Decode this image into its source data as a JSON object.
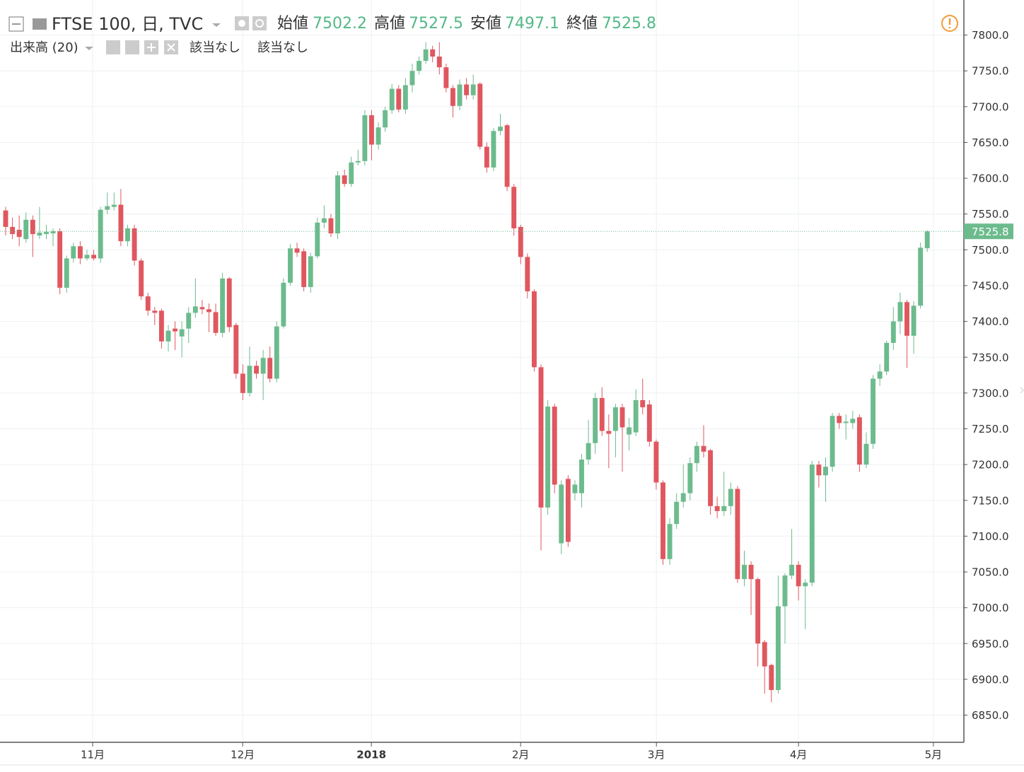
{
  "chart_data": {
    "type": "candlestick",
    "title": "FTSE 100, 日, TVC",
    "ohlc_labels": [
      "始値",
      "高値",
      "安値",
      "終値"
    ],
    "indicator": "出来高 (20)",
    "indicator_values": [
      "該当なし",
      "該当なし"
    ],
    "up_color": "#6cbb8d",
    "down_color": "#e0575f",
    "grid": true,
    "open": [
      7555,
      7532,
      7528,
      7515,
      7542,
      7520,
      7522,
      7523,
      7526,
      7447,
      7488,
      7505,
      7488,
      7493,
      7488,
      7556,
      7560,
      7563,
      7512,
      7530,
      7485,
      7435,
      7415,
      7415,
      7372,
      7390,
      7379,
      7390,
      7412,
      7420,
      7417,
      7413,
      7384,
      7460,
      7395,
      7327,
      7300,
      7338,
      7327,
      7349,
      7320,
      7393,
      7454,
      7502,
      7498,
      7448,
      7491,
      7538,
      7544,
      7523,
      7604,
      7592,
      7622,
      7624,
      7688,
      7647,
      7671,
      7695,
      7725,
      7696,
      7730,
      7750,
      7764,
      7780,
      7770,
      7755,
      7726,
      7701,
      7731,
      7716,
      7732,
      7644,
      7615,
      7666,
      7674,
      7588,
      7532,
      7490,
      7442,
      7336,
      7140,
      7281,
      7090,
      7180,
      7160,
      7160,
      7207,
      7230,
      7293,
      7247,
      7247,
      7280,
      7242,
      7245,
      7290,
      7284,
      7232,
      7175,
      7068,
      7117,
      7148,
      7160,
      7202,
      7226,
      7220,
      7142,
      7135,
      7142,
      7166,
      7040,
      7060,
      7040,
      6952,
      6920,
      6885,
      7002,
      7045,
      7060,
      7030,
      7035,
      7200,
      7185,
      7197,
      7268,
      7258,
      7258,
      7266,
      7200,
      7229,
      7320,
      7330,
      7370,
      7400,
      7427,
      7380,
      7422,
      7502.2
    ],
    "high": [
      7560,
      7545,
      7548,
      7552,
      7548,
      7560,
      7535,
      7530,
      7530,
      7492,
      7510,
      7512,
      7500,
      7500,
      7560,
      7580,
      7580,
      7585,
      7535,
      7535,
      7488,
      7440,
      7420,
      7418,
      7395,
      7400,
      7400,
      7420,
      7460,
      7430,
      7425,
      7425,
      7468,
      7462,
      7398,
      7340,
      7365,
      7345,
      7360,
      7365,
      7400,
      7460,
      7508,
      7510,
      7502,
      7496,
      7545,
      7562,
      7550,
      7610,
      7612,
      7630,
      7640,
      7695,
      7695,
      7678,
      7700,
      7732,
      7730,
      7740,
      7760,
      7770,
      7790,
      7785,
      7790,
      7760,
      7730,
      7738,
      7740,
      7745,
      7734,
      7650,
      7670,
      7690,
      7676,
      7592,
      7535,
      7495,
      7445,
      7340,
      7290,
      7285,
      7178,
      7185,
      7178,
      7215,
      7262,
      7300,
      7308,
      7270,
      7285,
      7285,
      7265,
      7305,
      7320,
      7290,
      7235,
      7178,
      7125,
      7160,
      7200,
      7210,
      7232,
      7255,
      7222,
      7155,
      7190,
      7175,
      7170,
      7080,
      7065,
      7042,
      6955,
      6922,
      7045,
      7048,
      7110,
      7065,
      7040,
      7205,
      7205,
      7210,
      7272,
      7272,
      7270,
      7275,
      7270,
      7245,
      7325,
      7340,
      7373,
      7420,
      7440,
      7430,
      7428,
      7510,
      7527.5
    ],
    "low": [
      7520,
      7515,
      7505,
      7510,
      7490,
      7515,
      7515,
      7505,
      7438,
      7440,
      7482,
      7480,
      7485,
      7485,
      7482,
      7550,
      7555,
      7505,
      7505,
      7478,
      7430,
      7408,
      7395,
      7362,
      7358,
      7360,
      7350,
      7370,
      7405,
      7410,
      7385,
      7380,
      7378,
      7385,
      7320,
      7290,
      7295,
      7320,
      7290,
      7315,
      7315,
      7390,
      7450,
      7490,
      7442,
      7440,
      7488,
      7530,
      7518,
      7515,
      7588,
      7588,
      7618,
      7618,
      7625,
      7640,
      7665,
      7690,
      7692,
      7690,
      7720,
      7745,
      7760,
      7762,
      7745,
      7720,
      7685,
      7695,
      7710,
      7710,
      7640,
      7608,
      7610,
      7660,
      7582,
      7520,
      7480,
      7432,
      7330,
      7080,
      7130,
      7160,
      7075,
      7085,
      7150,
      7140,
      7200,
      7215,
      7240,
      7195,
      7210,
      7190,
      7220,
      7240,
      7270,
      7225,
      7165,
      7060,
      7060,
      7110,
      7140,
      7150,
      7190,
      7210,
      7130,
      7125,
      7128,
      7130,
      7035,
      7030,
      6990,
      6918,
      6880,
      6868,
      6880,
      6950,
      7040,
      7010,
      6970,
      7030,
      7168,
      7148,
      7190,
      7250,
      7235,
      7250,
      7190,
      7195,
      7222,
      7310,
      7325,
      7360,
      7382,
      7335,
      7355,
      7418,
      7497.1
    ],
    "close": [
      7532,
      7522,
      7518,
      7542,
      7522,
      7524,
      7525,
      7526,
      7447,
      7488,
      7505,
      7488,
      7493,
      7488,
      7556,
      7561,
      7563,
      7512,
      7530,
      7485,
      7435,
      7415,
      7412,
      7372,
      7387,
      7386,
      7389,
      7412,
      7421,
      7417,
      7413,
      7384,
      7460,
      7392,
      7327,
      7300,
      7338,
      7327,
      7349,
      7320,
      7393,
      7454,
      7502,
      7496,
      7448,
      7491,
      7538,
      7544,
      7523,
      7604,
      7592,
      7622,
      7624,
      7688,
      7647,
      7671,
      7695,
      7725,
      7696,
      7730,
      7750,
      7764,
      7780,
      7770,
      7755,
      7726,
      7701,
      7731,
      7716,
      7731,
      7644,
      7615,
      7666,
      7672,
      7588,
      7530,
      7490,
      7442,
      7336,
      7140,
      7281,
      7172,
      7172,
      7092,
      7172,
      7207,
      7230,
      7293,
      7247,
      7243,
      7280,
      7252,
      7252,
      7290,
      7280,
      7232,
      7175,
      7068,
      7117,
      7148,
      7160,
      7202,
      7226,
      7218,
      7142,
      7135,
      7142,
      7166,
      7040,
      7060,
      7040,
      6950,
      6918,
      6885,
      7002,
      7045,
      7060,
      7030,
      7035,
      7200,
      7185,
      7197,
      7268,
      7258,
      7260,
      7264,
      7200,
      7229,
      7320,
      7330,
      7370,
      7400,
      7427,
      7380,
      7422,
      7503,
      7525.8
    ],
    "xlim": [
      -0.835,
      141.3
    ],
    "xticks": [
      {
        "value": 12.84,
        "label": "11月"
      },
      {
        "value": 34.97,
        "label": "12月"
      },
      {
        "value": 53.97,
        "label": "2018"
      },
      {
        "value": 75.99,
        "label": "2月"
      },
      {
        "value": 96.03,
        "label": "3月"
      },
      {
        "value": 117.0,
        "label": "4月"
      },
      {
        "value": 136.9,
        "label": "5月"
      }
    ],
    "ylim": [
      6812,
      7849
    ],
    "yticks": [
      {
        "value": 6850,
        "label": "6850.0"
      },
      {
        "value": 6900,
        "label": "6900.0"
      },
      {
        "value": 6950,
        "label": "6950.0"
      },
      {
        "value": 7000,
        "label": "7000.0"
      },
      {
        "value": 7050,
        "label": "7050.0"
      },
      {
        "value": 7100,
        "label": "7100.0"
      },
      {
        "value": 7150,
        "label": "7150.0"
      },
      {
        "value": 7200,
        "label": "7200.0"
      },
      {
        "value": 7250,
        "label": "7250.0"
      },
      {
        "value": 7300,
        "label": "7300.0"
      },
      {
        "value": 7350,
        "label": "7350.0"
      },
      {
        "value": 7400,
        "label": "7400.0"
      },
      {
        "value": 7450,
        "label": "7450.0"
      },
      {
        "value": 7500,
        "label": "7500.0"
      },
      {
        "value": 7550,
        "label": "7550.0"
      },
      {
        "value": 7600,
        "label": "7600.0"
      },
      {
        "value": 7650,
        "label": "7650.0"
      },
      {
        "value": 7700,
        "label": "7700.0"
      },
      {
        "value": 7750,
        "label": "7750.0"
      },
      {
        "value": 7800,
        "label": "7800.0"
      }
    ]
  }
}
